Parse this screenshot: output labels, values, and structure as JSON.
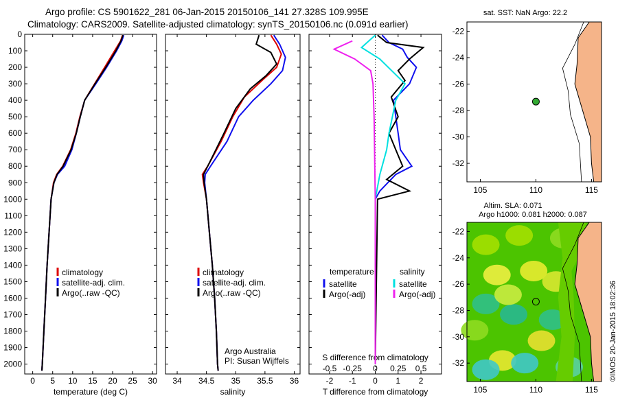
{
  "header": {
    "line1": "Argo profile: CS 5901622_281 06-Jan-2015 20150106_141 27.328S 109.995E",
    "line2": "Climatology: CARS2009. Satellite-adjusted climatology: synTS_20150106.nc (0.091d earlier)"
  },
  "credit": "©IMOS 20-Jan-2015 18:02:36",
  "colors": {
    "climatology": "#dd0000",
    "satellite": "#1010ee",
    "argo": "#000000",
    "cyan": "#00e0e0",
    "magenta": "#ee22ee",
    "land": "#f5b489",
    "float": "#33aa33"
  },
  "chart_data": [
    {
      "type": "line",
      "id": "temperature",
      "xlabel": "temperature (deg C)",
      "xlim": [
        -2,
        31
      ],
      "xticks": [
        0,
        5,
        10,
        15,
        20,
        25,
        30
      ],
      "ylim": [
        0,
        2060
      ],
      "yticks": [
        0,
        100,
        200,
        300,
        400,
        500,
        600,
        700,
        800,
        900,
        1000,
        1100,
        1200,
        1300,
        1400,
        1500,
        1600,
        1700,
        1800,
        1900,
        2000
      ],
      "legend": [
        "climatology",
        "satellite-adj. clim.",
        "Argo(..raw -QC)"
      ],
      "series": [
        {
          "name": "climatology",
          "color": "#dd0000",
          "points": [
            [
              22.5,
              5
            ],
            [
              22,
              40
            ],
            [
              20.5,
              100
            ],
            [
              18,
              200
            ],
            [
              15.5,
              300
            ],
            [
              13,
              400
            ],
            [
              11.8,
              500
            ],
            [
              10.8,
              600
            ],
            [
              9.5,
              700
            ],
            [
              7.5,
              800
            ],
            [
              6,
              850
            ],
            [
              5.2,
              900
            ],
            [
              4.6,
              1000
            ],
            [
              4.1,
              1200
            ],
            [
              3.6,
              1400
            ],
            [
              3.2,
              1600
            ],
            [
              2.8,
              1800
            ],
            [
              2.4,
              2000
            ],
            [
              2.3,
              2040
            ]
          ]
        },
        {
          "name": "satellite-adj. clim.",
          "color": "#1010ee",
          "points": [
            [
              22.8,
              5
            ],
            [
              22.3,
              40
            ],
            [
              21,
              100
            ],
            [
              18.5,
              200
            ],
            [
              15.8,
              300
            ],
            [
              13,
              400
            ],
            [
              11.9,
              500
            ],
            [
              10.9,
              600
            ],
            [
              9.8,
              700
            ],
            [
              8,
              800
            ],
            [
              6.2,
              850
            ],
            [
              5.3,
              900
            ],
            [
              4.6,
              1000
            ],
            [
              4.1,
              1200
            ],
            [
              3.6,
              1400
            ],
            [
              3.2,
              1600
            ],
            [
              2.8,
              1800
            ],
            [
              2.4,
              2000
            ],
            [
              2.3,
              2040
            ]
          ]
        },
        {
          "name": "Argo(..raw -QC)",
          "color": "#000000",
          "points": [
            [
              22.6,
              5
            ],
            [
              22.1,
              40
            ],
            [
              20.8,
              100
            ],
            [
              18.3,
              200
            ],
            [
              15.6,
              300
            ],
            [
              13,
              400
            ],
            [
              11.9,
              500
            ],
            [
              10.9,
              600
            ],
            [
              9.6,
              700
            ],
            [
              7.6,
              800
            ],
            [
              6.1,
              850
            ],
            [
              5.3,
              900
            ],
            [
              4.6,
              1000
            ],
            [
              4.1,
              1200
            ],
            [
              3.6,
              1400
            ],
            [
              3.2,
              1600
            ],
            [
              2.8,
              1800
            ],
            [
              2.4,
              2000
            ],
            [
              2.3,
              2040
            ]
          ]
        }
      ]
    },
    {
      "type": "line",
      "id": "salinity",
      "xlabel": "salinity",
      "xlim": [
        33.8,
        36.1
      ],
      "xticks": [
        34,
        34.5,
        35,
        35.5,
        36
      ],
      "ylim": [
        0,
        2060
      ],
      "legend": [
        "climatology",
        "satellite-adj. clim.",
        "Argo(..raw -QC)"
      ],
      "annotation": [
        "Argo Australia",
        "PI: Susan Wijffels"
      ],
      "series": [
        {
          "name": "climatology",
          "color": "#dd0000",
          "points": [
            [
              35.6,
              5
            ],
            [
              35.7,
              60
            ],
            [
              35.78,
              120
            ],
            [
              35.7,
              200
            ],
            [
              35.45,
              280
            ],
            [
              35.15,
              380
            ],
            [
              34.95,
              500
            ],
            [
              34.75,
              650
            ],
            [
              34.52,
              800
            ],
            [
              34.43,
              850
            ],
            [
              34.45,
              900
            ],
            [
              34.5,
              1000
            ],
            [
              34.55,
              1200
            ],
            [
              34.6,
              1400
            ],
            [
              34.64,
              1600
            ],
            [
              34.67,
              1800
            ],
            [
              34.69,
              2000
            ],
            [
              34.7,
              2040
            ]
          ]
        },
        {
          "name": "satellite-adj. clim.",
          "color": "#1010ee",
          "points": [
            [
              35.65,
              5
            ],
            [
              35.75,
              60
            ],
            [
              35.85,
              140
            ],
            [
              35.8,
              220
            ],
            [
              35.6,
              300
            ],
            [
              35.3,
              400
            ],
            [
              35.05,
              500
            ],
            [
              34.85,
              650
            ],
            [
              34.57,
              800
            ],
            [
              34.48,
              850
            ],
            [
              34.47,
              900
            ],
            [
              34.5,
              1000
            ],
            [
              34.55,
              1200
            ],
            [
              34.6,
              1400
            ],
            [
              34.64,
              1600
            ],
            [
              34.67,
              1800
            ],
            [
              34.69,
              2000
            ],
            [
              34.7,
              2040
            ]
          ]
        },
        {
          "name": "Argo(..raw -QC)",
          "color": "#000000",
          "points": [
            [
              35.4,
              5
            ],
            [
              35.35,
              60
            ],
            [
              35.6,
              110
            ],
            [
              35.7,
              180
            ],
            [
              35.52,
              250
            ],
            [
              35.25,
              330
            ],
            [
              35.0,
              450
            ],
            [
              34.8,
              600
            ],
            [
              34.55,
              780
            ],
            [
              34.45,
              850
            ],
            [
              34.46,
              900
            ],
            [
              34.5,
              1000
            ],
            [
              34.55,
              1200
            ],
            [
              34.6,
              1400
            ],
            [
              34.64,
              1600
            ],
            [
              34.67,
              1800
            ],
            [
              34.69,
              2000
            ],
            [
              34.7,
              2040
            ]
          ]
        }
      ]
    },
    {
      "type": "line",
      "id": "difference",
      "xlabel": "T difference from climatology",
      "xlabel_top": "S difference from climatology",
      "xlim": [
        -2.9,
        2.9
      ],
      "xticks": [
        -2,
        -1,
        0,
        1,
        2
      ],
      "sticks": [
        "-0.5",
        "-0.25",
        "0",
        "0.25",
        "0.5"
      ],
      "ylim": [
        0,
        2060
      ],
      "legend_left_title": "temperature",
      "legend_right_title": "salinity",
      "legend": [
        "satellite",
        "Argo(-adj)",
        "satellite",
        "Argo(-adj)"
      ],
      "series": [
        {
          "name": "T satellite",
          "color": "#1010ee",
          "points": [
            [
              0.3,
              5
            ],
            [
              0.6,
              50
            ],
            [
              1.2,
              90
            ],
            [
              1.4,
              140
            ],
            [
              1.8,
              200
            ],
            [
              1.5,
              300
            ],
            [
              0.8,
              400
            ],
            [
              0.9,
              500
            ],
            [
              1.0,
              600
            ],
            [
              1.1,
              700
            ],
            [
              1.6,
              800
            ],
            [
              0.9,
              850
            ],
            [
              0.2,
              950
            ],
            [
              0,
              1000
            ],
            [
              0,
              2000
            ]
          ]
        },
        {
          "name": "T Argo(-adj)",
          "color": "#000000",
          "points": [
            [
              0.1,
              5
            ],
            [
              0.5,
              50
            ],
            [
              2.1,
              80
            ],
            [
              1.5,
              150
            ],
            [
              1.0,
              220
            ],
            [
              1.3,
              280
            ],
            [
              0.7,
              380
            ],
            [
              1.0,
              500
            ],
            [
              0.6,
              600
            ],
            [
              0.9,
              700
            ],
            [
              1.2,
              800
            ],
            [
              0.5,
              880
            ],
            [
              1.5,
              950
            ],
            [
              0.1,
              1000
            ],
            [
              0,
              2000
            ]
          ]
        },
        {
          "name": "S satellite",
          "color": "#00e0e0",
          "points": [
            [
              0.0,
              5
            ],
            [
              -0.6,
              80
            ],
            [
              0.2,
              150
            ],
            [
              1.3,
              300
            ],
            [
              0.9,
              400
            ],
            [
              0.6,
              600
            ],
            [
              0.5,
              700
            ],
            [
              0.2,
              850
            ],
            [
              0,
              1000
            ],
            [
              0,
              2000
            ]
          ]
        },
        {
          "name": "S Argo(-adj)",
          "color": "#ee22ee",
          "points": [
            [
              -1.0,
              40
            ],
            [
              -1.8,
              90
            ],
            [
              -0.9,
              150
            ],
            [
              -0.2,
              220
            ],
            [
              -0.1,
              300
            ],
            [
              -0.05,
              500
            ],
            [
              0,
              1000
            ],
            [
              0,
              2000
            ]
          ]
        }
      ]
    }
  ],
  "maps": {
    "sst": {
      "title": "sat. SST: NaN Argo: 22.2",
      "xticks": [
        105,
        110,
        115
      ],
      "yticks": [
        -22,
        -24,
        -26,
        -28,
        -30,
        -32
      ],
      "float_lon": 110,
      "float_lat": -27.33
    },
    "sla": {
      "title1": "Altim. SLA: 0.071",
      "title2": "Argo h1000: 0.081 h2000: 0.087",
      "xticks": [
        105,
        110,
        115
      ],
      "yticks": [
        -22,
        -24,
        -26,
        -28,
        -30,
        -32
      ],
      "float_lon": 110,
      "float_lat": -27.33
    }
  }
}
